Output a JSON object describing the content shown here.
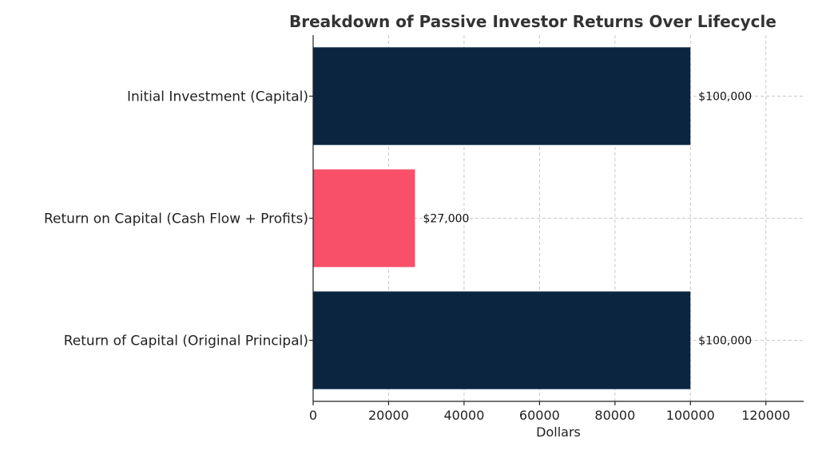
{
  "chart_data": {
    "type": "bar",
    "orientation": "horizontal",
    "title": "Breakdown of Passive Investor Returns Over Lifecycle",
    "xlabel": "Dollars",
    "ylabel": "",
    "xlim": [
      0,
      130000
    ],
    "xticks": [
      0,
      20000,
      40000,
      60000,
      80000,
      100000,
      120000
    ],
    "xtick_labels": [
      "0",
      "20000",
      "40000",
      "60000",
      "80000",
      "100000",
      "120000"
    ],
    "grid": true,
    "categories": [
      "Initial Investment (Capital)",
      "Return on Capital (Cash Flow + Profits)",
      "Return of Capital (Original Principal)"
    ],
    "values": [
      100000,
      27000,
      100000
    ],
    "data_labels": [
      "$100,000",
      "$27,000",
      "$100,000"
    ],
    "colors": [
      "#0b2541",
      "#f85068",
      "#0b2541"
    ]
  }
}
